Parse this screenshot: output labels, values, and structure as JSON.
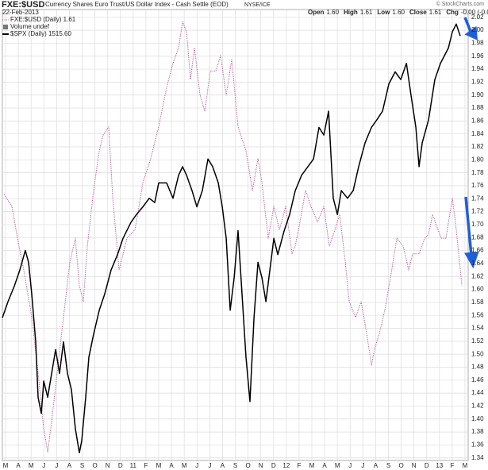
{
  "chart_data": {
    "type": "line",
    "title": "FXE:$USD",
    "subtitle": "Currency Shares Euro Trust/US Dollar Index - Cash Settle (EOD)",
    "exchange": "NYSE/ICE",
    "date": "22-Feb-2013",
    "credit": "© StockCharts.com",
    "quote": [
      {
        "label": "Open",
        "value": "1.60"
      },
      {
        "label": "High",
        "value": "1.61"
      },
      {
        "label": "Low",
        "value": "1.60"
      },
      {
        "label": "Close",
        "value": "1.61"
      },
      {
        "label": "Chg",
        "value": "-0.00 (-0.01%)"
      }
    ],
    "legend_extra": "Volume undef",
    "grid": true,
    "xlim": [
      -0.25,
      36.25
    ],
    "xticks": [
      {
        "value": 0,
        "label": "M"
      },
      {
        "value": 1,
        "label": "A"
      },
      {
        "value": 2,
        "label": "M"
      },
      {
        "value": 3,
        "label": "J"
      },
      {
        "value": 4,
        "label": "J"
      },
      {
        "value": 5,
        "label": "A"
      },
      {
        "value": 6,
        "label": "S"
      },
      {
        "value": 7,
        "label": "O"
      },
      {
        "value": 8,
        "label": "N"
      },
      {
        "value": 9,
        "label": "D"
      },
      {
        "value": 10,
        "label": "11"
      },
      {
        "value": 11,
        "label": "F"
      },
      {
        "value": 12,
        "label": "M"
      },
      {
        "value": 13,
        "label": "A"
      },
      {
        "value": 14,
        "label": "M"
      },
      {
        "value": 15,
        "label": "J"
      },
      {
        "value": 16,
        "label": "J"
      },
      {
        "value": 17,
        "label": "A"
      },
      {
        "value": 18,
        "label": "S"
      },
      {
        "value": 19,
        "label": "O"
      },
      {
        "value": 20,
        "label": "N"
      },
      {
        "value": 21,
        "label": "D"
      },
      {
        "value": 22,
        "label": "12"
      },
      {
        "value": 23,
        "label": "F"
      },
      {
        "value": 24,
        "label": "M"
      },
      {
        "value": 25,
        "label": "A"
      },
      {
        "value": 26,
        "label": "M"
      },
      {
        "value": 27,
        "label": "J"
      },
      {
        "value": 28,
        "label": "J"
      },
      {
        "value": 29,
        "label": "A"
      },
      {
        "value": 30,
        "label": "S"
      },
      {
        "value": 31,
        "label": "O"
      },
      {
        "value": 32,
        "label": "N"
      },
      {
        "value": 33,
        "label": "D"
      },
      {
        "value": 34,
        "label": "13"
      },
      {
        "value": 35,
        "label": "F"
      },
      {
        "value": 36,
        "label": "M"
      }
    ],
    "ylim": [
      1.336,
      2.032
    ],
    "yticks": [
      1.34,
      1.36,
      1.38,
      {
        "value": 1.4,
        "label": "1.40"
      },
      1.42,
      1.44,
      1.46,
      1.48,
      {
        "value": 1.5,
        "label": "1.50"
      },
      1.52,
      1.54,
      1.56,
      1.58,
      {
        "value": 1.6,
        "label": "1.60"
      },
      1.62,
      1.64,
      1.66,
      1.68,
      {
        "value": 1.7,
        "label": "1.70"
      },
      1.72,
      1.74,
      1.76,
      1.78,
      {
        "value": 1.8,
        "label": "1.80"
      },
      1.82,
      1.84,
      1.86,
      1.88,
      {
        "value": 1.9,
        "label": "1.90"
      },
      1.92,
      1.94,
      1.96,
      1.98,
      {
        "value": 2.0,
        "label": "2.00"
      },
      2.02
    ],
    "y2lim": [
      1013,
      1541
    ],
    "series": [
      {
        "name": "FXE:$USD (Daily) 1.61",
        "color": "#b45c9c",
        "dash": true,
        "x": [
          -0.12,
          0.5,
          0.93,
          1.43,
          2.05,
          2.55,
          2.99,
          3.3,
          3.61,
          4.04,
          4.54,
          5.04,
          5.47,
          5.78,
          6.09,
          6.41,
          6.9,
          7.34,
          7.65,
          8.08,
          8.4,
          8.89,
          9.51,
          10.14,
          10.45,
          10.76,
          11.38,
          12.0,
          12.62,
          13.12,
          13.56,
          13.87,
          14.18,
          14.49,
          14.8,
          15.24,
          15.61,
          16.04,
          16.48,
          16.85,
          17.29,
          17.72,
          18.22,
          18.84,
          19.34,
          19.78,
          20.09,
          20.58,
          21.02,
          21.46,
          21.95,
          22.45,
          22.7,
          23.07,
          23.51,
          23.94,
          24.44,
          24.94,
          25.37,
          25.81,
          26.18,
          26.62,
          26.93,
          27.43,
          27.86,
          28.3,
          28.67,
          28.92,
          29.29,
          29.73,
          30.16,
          30.66,
          31.16,
          31.59,
          31.9,
          32.4,
          32.84,
          33.15,
          33.46,
          33.77,
          34.14,
          34.51,
          35.01,
          35.32,
          35.76
        ],
        "values": [
          1.747,
          1.728,
          1.679,
          1.63,
          1.557,
          1.471,
          1.385,
          1.349,
          1.397,
          1.471,
          1.557,
          1.643,
          1.679,
          1.606,
          1.581,
          1.667,
          1.753,
          1.814,
          1.838,
          1.851,
          1.741,
          1.63,
          1.679,
          1.692,
          1.728,
          1.765,
          1.802,
          1.851,
          1.912,
          1.949,
          1.973,
          2.013,
          1.998,
          1.924,
          1.973,
          1.9,
          1.875,
          1.937,
          1.937,
          1.961,
          1.9,
          1.955,
          1.851,
          1.814,
          1.753,
          1.802,
          1.765,
          1.679,
          1.728,
          1.692,
          1.728,
          1.655,
          1.667,
          1.704,
          1.753,
          1.728,
          1.704,
          1.728,
          1.667,
          1.692,
          1.716,
          1.643,
          1.581,
          1.557,
          1.581,
          1.532,
          1.483,
          1.508,
          1.532,
          1.569,
          1.618,
          1.679,
          1.667,
          1.63,
          1.655,
          1.655,
          1.679,
          1.685,
          1.716,
          1.698,
          1.679,
          1.679,
          1.741,
          1.692,
          1.606
        ]
      },
      {
        "name": "$SPX (Daily) 1515.60",
        "color": "#000000",
        "axis": "y2",
        "x": [
          -0.25,
          0.19,
          0.68,
          1.12,
          1.55,
          1.8,
          2.05,
          2.36,
          2.55,
          2.8,
          2.99,
          3.3,
          3.61,
          3.92,
          4.23,
          4.54,
          4.85,
          5.16,
          5.47,
          5.78,
          5.97,
          6.28,
          6.53,
          6.9,
          7.34,
          7.77,
          8.27,
          8.77,
          9.2,
          9.83,
          10.26,
          10.76,
          11.26,
          11.69,
          12.0,
          12.62,
          13.12,
          13.56,
          13.87,
          14.18,
          14.61,
          14.99,
          15.42,
          15.86,
          16.23,
          16.67,
          16.98,
          17.29,
          17.6,
          17.91,
          18.22,
          18.53,
          18.84,
          19.15,
          19.47,
          19.78,
          20.09,
          20.4,
          20.71,
          21.02,
          21.33,
          21.83,
          22.26,
          22.7,
          23.2,
          23.69,
          24.13,
          24.56,
          24.94,
          25.31,
          25.68,
          26.0,
          26.31,
          26.8,
          27.24,
          27.67,
          28.17,
          28.67,
          29.1,
          29.54,
          30.04,
          30.53,
          30.97,
          31.41,
          31.78,
          32.15,
          32.4,
          32.65,
          33.15,
          33.64,
          34.08,
          34.39,
          34.7,
          35.01,
          35.32,
          35.63
        ],
        "values": [
          1180,
          1199,
          1217,
          1236,
          1259,
          1245,
          1208,
          1152,
          1087,
          1068,
          1106,
          1087,
          1115,
          1143,
          1115,
          1152,
          1115,
          1096,
          1050,
          1022,
          1036,
          1087,
          1134,
          1161,
          1189,
          1208,
          1236,
          1254,
          1273,
          1292,
          1301,
          1310,
          1320,
          1315,
          1338,
          1338,
          1320,
          1347,
          1357,
          1347,
          1329,
          1310,
          1329,
          1366,
          1357,
          1338,
          1310,
          1273,
          1189,
          1227,
          1282,
          1208,
          1134,
          1082,
          1180,
          1245,
          1227,
          1199,
          1236,
          1273,
          1254,
          1282,
          1301,
          1329,
          1347,
          1357,
          1366,
          1403,
          1394,
          1422,
          1320,
          1301,
          1329,
          1320,
          1329,
          1357,
          1385,
          1403,
          1412,
          1422,
          1454,
          1468,
          1459,
          1478,
          1440,
          1403,
          1357,
          1385,
          1412,
          1459,
          1478,
          1487,
          1496,
          1515,
          1524,
          1510
        ]
      }
    ]
  }
}
